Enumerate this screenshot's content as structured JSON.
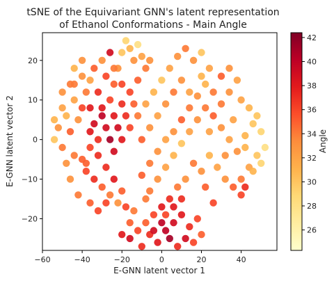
{
  "chart_data": {
    "type": "scatter",
    "title_lines": [
      "tSNE of the Equivariant GNN's latent representation",
      "of Ethanol Conformations - Main Angle"
    ],
    "xlabel": "E-GNN latent vector 1",
    "ylabel": "E-GNN latent vector 2",
    "xlim": [
      -60,
      58
    ],
    "ylim": [
      -28,
      27
    ],
    "x_ticks": [
      -60,
      -40,
      -20,
      0,
      20,
      40
    ],
    "y_ticks": [
      20,
      10,
      0,
      -10,
      -20
    ],
    "colorbar": {
      "label": "Angle",
      "range": [
        24.3,
        42.4
      ],
      "ticks": [
        26,
        28,
        30,
        32,
        34,
        36,
        38,
        40,
        42
      ],
      "colormap": "YlOrRd",
      "colors": [
        "#ffffcc",
        "#ffeda0",
        "#fed976",
        "#feb24c",
        "#fd8d3c",
        "#fc4e2a",
        "#e31a1c",
        "#bd0026",
        "#800026"
      ]
    },
    "grid": false,
    "points": [
      [
        -50,
        12,
        33
      ],
      [
        -46,
        14,
        34
      ],
      [
        -44,
        10,
        32
      ],
      [
        -48,
        6,
        31
      ],
      [
        -52,
        3,
        33
      ],
      [
        -54,
        0,
        30
      ],
      [
        -50,
        -2,
        34
      ],
      [
        -46,
        2,
        35
      ],
      [
        -42,
        5,
        33
      ],
      [
        -40,
        8,
        36
      ],
      [
        -38,
        12,
        34
      ],
      [
        -36,
        15,
        32
      ],
      [
        -40,
        16,
        33
      ],
      [
        -44,
        18,
        31
      ],
      [
        -34,
        18,
        35
      ],
      [
        -30,
        20,
        33
      ],
      [
        -28,
        16,
        36
      ],
      [
        -32,
        12,
        37
      ],
      [
        -30,
        8,
        38
      ],
      [
        -26,
        10,
        36
      ],
      [
        -24,
        14,
        35
      ],
      [
        -22,
        18,
        33
      ],
      [
        -20,
        22,
        30
      ],
      [
        -18,
        25,
        29
      ],
      [
        -16,
        23,
        31
      ],
      [
        -14,
        20,
        33
      ],
      [
        -12,
        24,
        28
      ],
      [
        -10,
        21,
        32
      ],
      [
        -8,
        18,
        34
      ],
      [
        -12,
        15,
        35
      ],
      [
        -16,
        12,
        36
      ],
      [
        -20,
        9,
        37
      ],
      [
        -24,
        6,
        38
      ],
      [
        -28,
        3,
        39
      ],
      [
        -32,
        0,
        37
      ],
      [
        -36,
        -2,
        36
      ],
      [
        -40,
        -5,
        35
      ],
      [
        -44,
        -4,
        34
      ],
      [
        -38,
        -8,
        36
      ],
      [
        -34,
        -10,
        37
      ],
      [
        -30,
        -12,
        35
      ],
      [
        -26,
        -14,
        34
      ],
      [
        -22,
        -16,
        33
      ],
      [
        -18,
        -17,
        36
      ],
      [
        -14,
        -18,
        34
      ],
      [
        -20,
        -13,
        35
      ],
      [
        -24,
        -10,
        38
      ],
      [
        -28,
        -7,
        37
      ],
      [
        -24,
        -3,
        39
      ],
      [
        -20,
        0,
        38
      ],
      [
        -16,
        3,
        36
      ],
      [
        -12,
        6,
        34
      ],
      [
        -8,
        9,
        32
      ],
      [
        -4,
        12,
        31
      ],
      [
        0,
        15,
        30
      ],
      [
        4,
        18,
        32
      ],
      [
        8,
        21,
        33
      ],
      [
        12,
        23,
        34
      ],
      [
        16,
        20,
        33
      ],
      [
        20,
        22,
        30
      ],
      [
        24,
        18,
        32
      ],
      [
        22,
        14,
        31
      ],
      [
        18,
        11,
        33
      ],
      [
        14,
        8,
        34
      ],
      [
        10,
        5,
        35
      ],
      [
        6,
        2,
        33
      ],
      [
        2,
        0,
        32
      ],
      [
        -2,
        -3,
        33
      ],
      [
        -6,
        -6,
        34
      ],
      [
        -10,
        -9,
        35
      ],
      [
        -6,
        -13,
        34
      ],
      [
        -2,
        -10,
        33
      ],
      [
        2,
        -7,
        32
      ],
      [
        6,
        -4,
        31
      ],
      [
        10,
        -1,
        30
      ],
      [
        14,
        2,
        32
      ],
      [
        18,
        5,
        33
      ],
      [
        22,
        8,
        34
      ],
      [
        26,
        6,
        35
      ],
      [
        30,
        9,
        34
      ],
      [
        34,
        12,
        33
      ],
      [
        38,
        15,
        32
      ],
      [
        30,
        3,
        33
      ],
      [
        34,
        0,
        32
      ],
      [
        38,
        -3,
        33
      ],
      [
        42,
        1,
        31
      ],
      [
        46,
        4,
        30
      ],
      [
        50,
        2,
        29
      ],
      [
        52,
        -2,
        28
      ],
      [
        48,
        -4,
        30
      ],
      [
        44,
        -7,
        32
      ],
      [
        40,
        -10,
        34
      ],
      [
        36,
        -12,
        35
      ],
      [
        32,
        -10,
        33
      ],
      [
        28,
        -7,
        32
      ],
      [
        24,
        -4,
        31
      ],
      [
        20,
        -8,
        33
      ],
      [
        16,
        -6,
        34
      ],
      [
        42,
        -12,
        37
      ],
      [
        40,
        -14,
        36
      ],
      [
        4,
        -15,
        37
      ],
      [
        0,
        -17,
        38
      ],
      [
        -4,
        -19,
        36
      ],
      [
        -8,
        -21,
        35
      ],
      [
        -6,
        -24,
        37
      ],
      [
        -2,
        -26,
        38
      ],
      [
        2,
        -23,
        40
      ],
      [
        6,
        -21,
        39
      ],
      [
        10,
        -19,
        38
      ],
      [
        14,
        -22,
        37
      ],
      [
        18,
        -20,
        36
      ],
      [
        20,
        -24,
        35
      ],
      [
        16,
        -26,
        36
      ],
      [
        12,
        -25,
        39
      ],
      [
        8,
        -27,
        37
      ],
      [
        4,
        -25,
        41
      ],
      [
        0,
        -21,
        40
      ],
      [
        -4,
        -23,
        39
      ],
      [
        2,
        -19,
        36
      ],
      [
        6,
        -17,
        38
      ],
      [
        10,
        -15,
        37
      ],
      [
        -12,
        -23,
        36
      ],
      [
        -16,
        -21,
        35
      ],
      [
        -20,
        -24,
        38
      ],
      [
        -16,
        -25,
        39
      ],
      [
        -10,
        -27,
        37
      ],
      [
        -38,
        -6,
        35
      ],
      [
        -46,
        -10,
        33
      ],
      [
        -42,
        -14,
        34
      ],
      [
        -36,
        -16,
        35
      ],
      [
        -32,
        -18,
        36
      ],
      [
        -34,
        4,
        39
      ],
      [
        -30,
        6,
        40
      ],
      [
        -26,
        0,
        41
      ],
      [
        -22,
        3,
        39
      ],
      [
        -18,
        6,
        37
      ],
      [
        -36,
        8,
        38
      ],
      [
        -10,
        0,
        35
      ],
      [
        -6,
        3,
        33
      ],
      [
        -2,
        6,
        32
      ],
      [
        2,
        9,
        33
      ],
      [
        6,
        12,
        34
      ],
      [
        10,
        15,
        33
      ],
      [
        14,
        12,
        32
      ],
      [
        -26,
        22,
        39
      ],
      [
        -6,
        20,
        33
      ],
      [
        26,
        12,
        34
      ],
      [
        30,
        16,
        35
      ],
      [
        34,
        18,
        33
      ],
      [
        40,
        10,
        32
      ],
      [
        44,
        8,
        31
      ],
      [
        48,
        6,
        30
      ],
      [
        50,
        -6,
        29
      ],
      [
        46,
        -8,
        31
      ],
      [
        22,
        -12,
        35
      ],
      [
        26,
        -16,
        36
      ],
      [
        12,
        -10,
        33
      ],
      [
        8,
        -12,
        34
      ],
      [
        -50,
        8,
        32
      ],
      [
        -48,
        -6,
        33
      ],
      [
        -54,
        5,
        31
      ],
      [
        -44,
        14,
        34
      ],
      [
        -40,
        20,
        33
      ],
      [
        -20,
        14,
        36
      ],
      [
        -14,
        9,
        35
      ],
      [
        24,
        2,
        32
      ],
      [
        20,
        16,
        31
      ],
      [
        -8,
        -15,
        34
      ],
      [
        -28,
        -16,
        36
      ],
      [
        -32,
        -4,
        37
      ],
      [
        -36,
        2,
        38
      ],
      [
        -24,
        18,
        34
      ],
      [
        32,
        -4,
        33
      ],
      [
        36,
        5,
        32
      ],
      [
        42,
        -2,
        31
      ]
    ]
  }
}
